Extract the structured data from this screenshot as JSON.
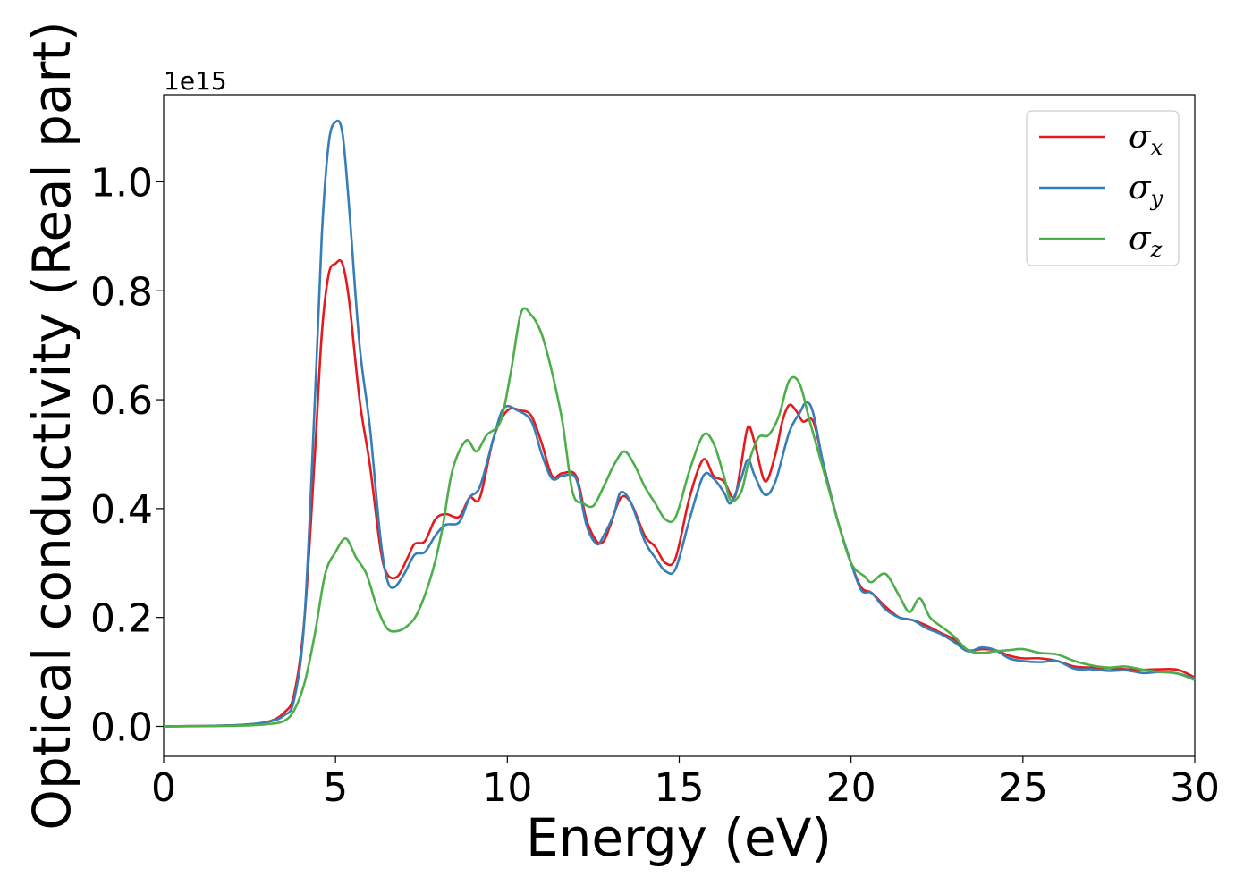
{
  "chart_data": {
    "type": "line",
    "title": "",
    "xlabel": "Energy (eV)",
    "ylabel": "Optical conductivity (Real part)",
    "y_offset_text": "1e15",
    "xlim": [
      0,
      30
    ],
    "ylim": [
      -0.055,
      1.16
    ],
    "x_ticks": [
      0,
      5,
      10,
      15,
      20,
      25,
      30
    ],
    "x_tick_labels": [
      "0",
      "5",
      "10",
      "15",
      "20",
      "25",
      "30"
    ],
    "y_ticks": [
      0.0,
      0.2,
      0.4,
      0.6,
      0.8,
      1.0
    ],
    "y_tick_labels": [
      "0.0",
      "0.2",
      "0.4",
      "0.6",
      "0.8",
      "1.0"
    ],
    "grid": false,
    "legend_position": "top-right",
    "series": [
      {
        "name": "σ",
        "name_sub": "x",
        "color": "#e41a1c",
        "points": [
          [
            0,
            0
          ],
          [
            2,
            0.002
          ],
          [
            3,
            0.008
          ],
          [
            3.5,
            0.025
          ],
          [
            3.8,
            0.06
          ],
          [
            4.1,
            0.2
          ],
          [
            4.4,
            0.5
          ],
          [
            4.6,
            0.72
          ],
          [
            4.8,
            0.83
          ],
          [
            5,
            0.85
          ],
          [
            5.2,
            0.85
          ],
          [
            5.4,
            0.78
          ],
          [
            5.7,
            0.6
          ],
          [
            6,
            0.48
          ],
          [
            6.3,
            0.33
          ],
          [
            6.5,
            0.28
          ],
          [
            6.8,
            0.275
          ],
          [
            7.1,
            0.31
          ],
          [
            7.3,
            0.335
          ],
          [
            7.6,
            0.34
          ],
          [
            7.9,
            0.38
          ],
          [
            8.2,
            0.39
          ],
          [
            8.6,
            0.385
          ],
          [
            8.9,
            0.42
          ],
          [
            9.2,
            0.42
          ],
          [
            9.6,
            0.53
          ],
          [
            10,
            0.58
          ],
          [
            10.4,
            0.58
          ],
          [
            10.7,
            0.57
          ],
          [
            11,
            0.52
          ],
          [
            11.3,
            0.46
          ],
          [
            11.6,
            0.465
          ],
          [
            12,
            0.46
          ],
          [
            12.3,
            0.38
          ],
          [
            12.6,
            0.34
          ],
          [
            12.8,
            0.34
          ],
          [
            13,
            0.37
          ],
          [
            13.3,
            0.42
          ],
          [
            13.6,
            0.41
          ],
          [
            14,
            0.35
          ],
          [
            14.3,
            0.33
          ],
          [
            14.6,
            0.3
          ],
          [
            14.9,
            0.31
          ],
          [
            15.3,
            0.42
          ],
          [
            15.7,
            0.49
          ],
          [
            16,
            0.46
          ],
          [
            16.3,
            0.45
          ],
          [
            16.6,
            0.42
          ],
          [
            16.8,
            0.48
          ],
          [
            17,
            0.55
          ],
          [
            17.2,
            0.52
          ],
          [
            17.5,
            0.45
          ],
          [
            17.8,
            0.5
          ],
          [
            18,
            0.56
          ],
          [
            18.2,
            0.59
          ],
          [
            18.4,
            0.58
          ],
          [
            18.6,
            0.56
          ],
          [
            18.9,
            0.56
          ],
          [
            19.2,
            0.48
          ],
          [
            19.6,
            0.38
          ],
          [
            20,
            0.3
          ],
          [
            20.3,
            0.255
          ],
          [
            20.6,
            0.245
          ],
          [
            21,
            0.22
          ],
          [
            21.4,
            0.2
          ],
          [
            21.8,
            0.195
          ],
          [
            22.2,
            0.185
          ],
          [
            22.6,
            0.172
          ],
          [
            23,
            0.16
          ],
          [
            23.4,
            0.14
          ],
          [
            23.8,
            0.142
          ],
          [
            24.2,
            0.14
          ],
          [
            24.6,
            0.13
          ],
          [
            25,
            0.125
          ],
          [
            25.5,
            0.125
          ],
          [
            26,
            0.12
          ],
          [
            26.5,
            0.11
          ],
          [
            27,
            0.108
          ],
          [
            27.5,
            0.107
          ],
          [
            28,
            0.105
          ],
          [
            28.5,
            0.104
          ],
          [
            29,
            0.105
          ],
          [
            29.5,
            0.104
          ],
          [
            30,
            0.09
          ]
        ]
      },
      {
        "name": "σ",
        "name_sub": "y",
        "color": "#377eb8",
        "points": [
          [
            0,
            0
          ],
          [
            2,
            0.002
          ],
          [
            3,
            0.008
          ],
          [
            3.5,
            0.02
          ],
          [
            3.8,
            0.05
          ],
          [
            4.1,
            0.2
          ],
          [
            4.4,
            0.6
          ],
          [
            4.6,
            0.9
          ],
          [
            4.8,
            1.07
          ],
          [
            5,
            1.11
          ],
          [
            5.2,
            1.09
          ],
          [
            5.4,
            0.95
          ],
          [
            5.7,
            0.7
          ],
          [
            6,
            0.55
          ],
          [
            6.3,
            0.35
          ],
          [
            6.5,
            0.27
          ],
          [
            6.7,
            0.255
          ],
          [
            7,
            0.28
          ],
          [
            7.3,
            0.315
          ],
          [
            7.6,
            0.32
          ],
          [
            7.9,
            0.35
          ],
          [
            8.2,
            0.37
          ],
          [
            8.6,
            0.375
          ],
          [
            8.9,
            0.42
          ],
          [
            9.2,
            0.44
          ],
          [
            9.6,
            0.53
          ],
          [
            9.9,
            0.585
          ],
          [
            10.3,
            0.58
          ],
          [
            10.7,
            0.56
          ],
          [
            11,
            0.5
          ],
          [
            11.3,
            0.455
          ],
          [
            11.6,
            0.46
          ],
          [
            12,
            0.455
          ],
          [
            12.3,
            0.37
          ],
          [
            12.6,
            0.335
          ],
          [
            12.8,
            0.35
          ],
          [
            13.1,
            0.39
          ],
          [
            13.3,
            0.43
          ],
          [
            13.6,
            0.41
          ],
          [
            14,
            0.34
          ],
          [
            14.3,
            0.31
          ],
          [
            14.6,
            0.285
          ],
          [
            14.9,
            0.29
          ],
          [
            15.3,
            0.38
          ],
          [
            15.7,
            0.46
          ],
          [
            16,
            0.455
          ],
          [
            16.3,
            0.43
          ],
          [
            16.5,
            0.41
          ],
          [
            16.8,
            0.455
          ],
          [
            17,
            0.49
          ],
          [
            17.2,
            0.46
          ],
          [
            17.5,
            0.425
          ],
          [
            17.8,
            0.45
          ],
          [
            18.2,
            0.54
          ],
          [
            18.5,
            0.575
          ],
          [
            18.7,
            0.595
          ],
          [
            18.9,
            0.575
          ],
          [
            19.2,
            0.48
          ],
          [
            19.6,
            0.38
          ],
          [
            20,
            0.3
          ],
          [
            20.3,
            0.25
          ],
          [
            20.6,
            0.245
          ],
          [
            21,
            0.215
          ],
          [
            21.4,
            0.2
          ],
          [
            21.8,
            0.195
          ],
          [
            22.2,
            0.18
          ],
          [
            22.6,
            0.17
          ],
          [
            23,
            0.155
          ],
          [
            23.4,
            0.138
          ],
          [
            23.8,
            0.145
          ],
          [
            24.2,
            0.14
          ],
          [
            24.6,
            0.125
          ],
          [
            25,
            0.12
          ],
          [
            25.5,
            0.118
          ],
          [
            26,
            0.12
          ],
          [
            26.5,
            0.106
          ],
          [
            27,
            0.105
          ],
          [
            27.5,
            0.102
          ],
          [
            28,
            0.103
          ],
          [
            28.5,
            0.098
          ],
          [
            29,
            0.1
          ],
          [
            29.5,
            0.097
          ],
          [
            30,
            0.088
          ]
        ]
      },
      {
        "name": "σ",
        "name_sub": "z",
        "color": "#4daf4a",
        "points": [
          [
            0,
            0
          ],
          [
            2,
            0.001
          ],
          [
            3,
            0.004
          ],
          [
            3.5,
            0.01
          ],
          [
            3.8,
            0.03
          ],
          [
            4.1,
            0.08
          ],
          [
            4.4,
            0.17
          ],
          [
            4.7,
            0.28
          ],
          [
            5,
            0.32
          ],
          [
            5.3,
            0.345
          ],
          [
            5.6,
            0.31
          ],
          [
            5.9,
            0.28
          ],
          [
            6.2,
            0.22
          ],
          [
            6.5,
            0.18
          ],
          [
            6.8,
            0.175
          ],
          [
            7.1,
            0.185
          ],
          [
            7.4,
            0.21
          ],
          [
            7.8,
            0.28
          ],
          [
            8.1,
            0.36
          ],
          [
            8.4,
            0.47
          ],
          [
            8.8,
            0.525
          ],
          [
            9.1,
            0.505
          ],
          [
            9.4,
            0.535
          ],
          [
            9.8,
            0.56
          ],
          [
            10.1,
            0.65
          ],
          [
            10.4,
            0.76
          ],
          [
            10.7,
            0.755
          ],
          [
            11,
            0.72
          ],
          [
            11.3,
            0.65
          ],
          [
            11.6,
            0.56
          ],
          [
            11.9,
            0.43
          ],
          [
            12.2,
            0.41
          ],
          [
            12.5,
            0.405
          ],
          [
            12.8,
            0.44
          ],
          [
            13.1,
            0.48
          ],
          [
            13.4,
            0.505
          ],
          [
            13.7,
            0.48
          ],
          [
            14,
            0.44
          ],
          [
            14.3,
            0.41
          ],
          [
            14.6,
            0.38
          ],
          [
            14.9,
            0.385
          ],
          [
            15.3,
            0.47
          ],
          [
            15.7,
            0.535
          ],
          [
            16,
            0.52
          ],
          [
            16.3,
            0.46
          ],
          [
            16.5,
            0.415
          ],
          [
            16.8,
            0.43
          ],
          [
            17,
            0.48
          ],
          [
            17.3,
            0.53
          ],
          [
            17.6,
            0.535
          ],
          [
            17.9,
            0.57
          ],
          [
            18.2,
            0.635
          ],
          [
            18.5,
            0.63
          ],
          [
            18.8,
            0.56
          ],
          [
            19.2,
            0.47
          ],
          [
            19.6,
            0.38
          ],
          [
            20,
            0.3
          ],
          [
            20.4,
            0.275
          ],
          [
            20.6,
            0.265
          ],
          [
            21,
            0.28
          ],
          [
            21.4,
            0.24
          ],
          [
            21.7,
            0.21
          ],
          [
            22,
            0.235
          ],
          [
            22.3,
            0.2
          ],
          [
            22.7,
            0.18
          ],
          [
            23,
            0.165
          ],
          [
            23.4,
            0.14
          ],
          [
            23.8,
            0.135
          ],
          [
            24.2,
            0.138
          ],
          [
            24.6,
            0.14
          ],
          [
            25,
            0.142
          ],
          [
            25.5,
            0.135
          ],
          [
            26,
            0.132
          ],
          [
            26.5,
            0.12
          ],
          [
            27,
            0.112
          ],
          [
            27.5,
            0.108
          ],
          [
            28,
            0.11
          ],
          [
            28.5,
            0.104
          ],
          [
            29,
            0.1
          ],
          [
            29.5,
            0.097
          ],
          [
            30,
            0.085
          ]
        ]
      }
    ]
  }
}
